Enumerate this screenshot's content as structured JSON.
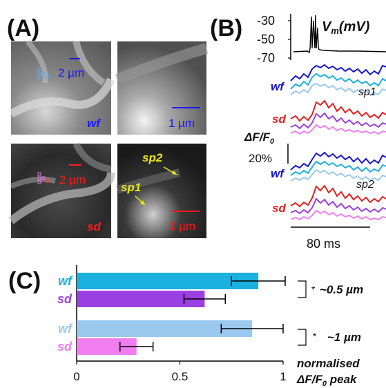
{
  "panels": {
    "a": {
      "letter": "(A)",
      "wf_label": "wf",
      "sd_label": "sd",
      "scale_2um": "2 µm",
      "scale_1um": "1 µm",
      "sp1": "sp1",
      "sp2": "sp2"
    },
    "b": {
      "letter": "(B)",
      "vm_label": "V",
      "vm_sub": "m",
      "vm_unit": "(mV)",
      "vm_ticks": [
        "-30",
        "-50",
        "-70"
      ],
      "df_label": "ΔF/F",
      "df_sub": "0",
      "df_scale": "20%",
      "wf_label": "wf",
      "sd_label": "sd",
      "sp1": "sp1",
      "sp2": "sp2",
      "time_scale": "80 ms"
    },
    "c": {
      "letter": "(C)",
      "group1_label": "~0.5 µm",
      "group2_label": "~1 µm",
      "star": "*",
      "xlabel_line1": "normalised",
      "xlabel_line2": "ΔF/F",
      "xlabel_sub": "0",
      "xlabel_line2_end": " peak"
    }
  },
  "colors": {
    "wf_dark": "#1515cc",
    "wf_cyan": "#1ab0e0",
    "wf_light": "#9bc8ee",
    "sd_red": "#e02020",
    "sd_purple": "#9a3fe0",
    "sd_pink": "#f07ef0",
    "scale_blue": "#1a1aff",
    "scale_red": "#ff1a1a",
    "annot_yellow": "#e8e81a"
  },
  "chart_data": {
    "type": "bar",
    "orientation": "horizontal",
    "categories": [
      "wf",
      "sd",
      "wf",
      "sd"
    ],
    "values": [
      0.88,
      0.62,
      0.85,
      0.29
    ],
    "errors": [
      0.13,
      0.1,
      0.15,
      0.08
    ],
    "colors": [
      "#1ab0e0",
      "#9a3fe0",
      "#9bc8ee",
      "#f07ef0"
    ],
    "xlim": [
      0,
      1
    ],
    "xticks": [
      "0",
      "0.5",
      "1"
    ],
    "xlabel": "normalised ΔF/F0 peak"
  }
}
